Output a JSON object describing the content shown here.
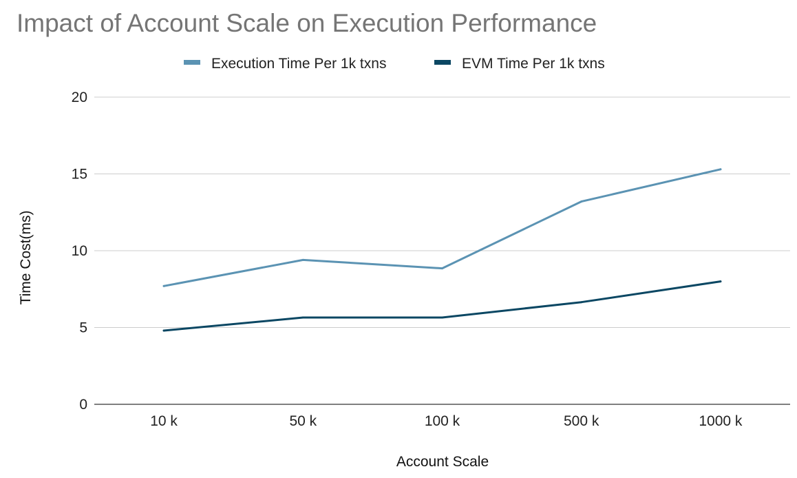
{
  "chart_data": {
    "type": "line",
    "title": "Impact of Account Scale on Execution Performance",
    "xlabel": "Account Scale",
    "ylabel": "Time Cost(ms)",
    "categories": [
      "10 k",
      "50 k",
      "100 k",
      "500 k",
      "1000 k"
    ],
    "ylim": [
      0,
      20
    ],
    "yticks": [
      0,
      5,
      10,
      15,
      20
    ],
    "grid": true,
    "legend_position": "top-center",
    "series": [
      {
        "name": "Execution Time Per 1k txns",
        "color": "#5b93b3",
        "values": [
          7.7,
          9.4,
          8.85,
          13.2,
          15.3
        ]
      },
      {
        "name": "EVM Time Per 1k txns",
        "color": "#0b4763",
        "values": [
          4.8,
          5.65,
          5.65,
          6.65,
          8.0
        ]
      }
    ]
  }
}
